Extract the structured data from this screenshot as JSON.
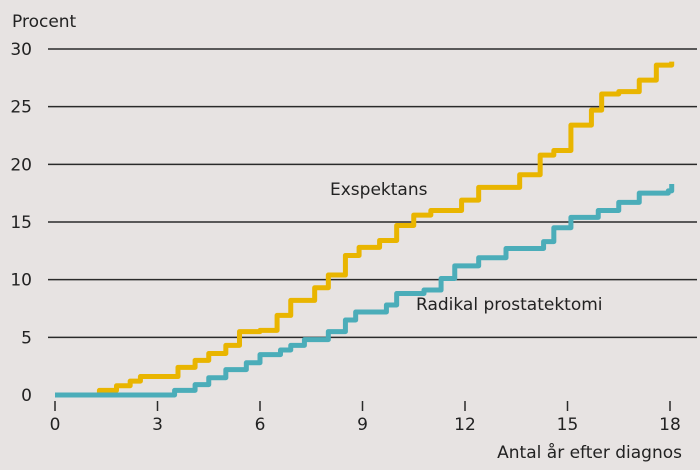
{
  "chart_data": {
    "type": "line",
    "ylabel": "Procent",
    "xlabel": "Antal år efter diagnos",
    "xlim": [
      0,
      18.2
    ],
    "ylim": [
      0,
      30
    ],
    "xticks": [
      0,
      3,
      6,
      9,
      12,
      15,
      18
    ],
    "yticks": [
      0,
      5,
      10,
      15,
      20,
      25,
      30
    ],
    "grid": "horizontal",
    "series": [
      {
        "name": "Exspektans",
        "color": "#e9b500",
        "step": true,
        "x": [
          0,
          1.3,
          1.8,
          2.2,
          2.5,
          3.6,
          4.1,
          4.5,
          5.0,
          5.4,
          6.0,
          6.5,
          6.9,
          7.6,
          8.0,
          8.5,
          8.9,
          9.5,
          10.0,
          10.5,
          11.0,
          11.9,
          12.4,
          13.6,
          14.2,
          14.6,
          15.1,
          15.7,
          16.0,
          16.5,
          17.1,
          17.6,
          18.05
        ],
        "y": [
          0,
          0.4,
          0.8,
          1.2,
          1.6,
          2.4,
          3.0,
          3.6,
          4.3,
          5.5,
          5.6,
          6.9,
          8.2,
          9.3,
          10.4,
          12.1,
          12.8,
          13.4,
          14.7,
          15.6,
          16.0,
          16.9,
          18.0,
          19.1,
          20.8,
          21.2,
          23.4,
          24.7,
          26.1,
          26.3,
          27.3,
          28.6,
          28.9
        ]
      },
      {
        "name": "Radikal prostatektomi",
        "color": "#4badb9",
        "step": true,
        "x": [
          0,
          3.5,
          4.1,
          4.5,
          5.0,
          5.6,
          6.0,
          6.6,
          6.9,
          7.3,
          8.0,
          8.5,
          8.8,
          9.7,
          10.0,
          10.8,
          11.3,
          11.7,
          12.4,
          13.2,
          14.3,
          14.6,
          15.1,
          15.9,
          16.5,
          17.1,
          17.95,
          18.05
        ],
        "y": [
          0,
          0.4,
          0.9,
          1.5,
          2.2,
          2.8,
          3.5,
          3.9,
          4.3,
          4.8,
          5.5,
          6.5,
          7.2,
          7.8,
          8.8,
          9.1,
          10.1,
          11.2,
          11.9,
          12.7,
          13.3,
          14.5,
          15.4,
          16.0,
          16.7,
          17.5,
          17.7,
          18.3
        ]
      }
    ],
    "annotations": [
      "Exspektans",
      "Radikal prostatektomi"
    ]
  }
}
